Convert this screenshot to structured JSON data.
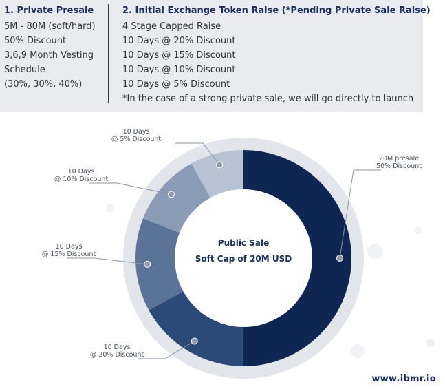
{
  "presale": {
    "title": "1. Private Presale",
    "lines": [
      "5M - 80M (soft/hard)",
      "50% Discount",
      "3,6,9 Month Vesting",
      "Schedule",
      "(30%, 30%, 40%)"
    ]
  },
  "ieo": {
    "title": "2. Initial Exchange Token Raise (*Pending Private Sale Raise)",
    "lines": [
      "4 Stage Capped Raise",
      "10 Days @ 20% Discount",
      "10 Days @ 15% Discount",
      "10 Days @ 10% Discount",
      "10 Days @ 5% Discount",
      "*In the case of a strong private sale, we will go directly to launch"
    ]
  },
  "chart_data": {
    "type": "pie",
    "style": "donut",
    "center_label": [
      "Public Sale",
      "Soft Cap of 20M USD"
    ],
    "slices": [
      {
        "label": [
          "20M presale",
          "50% Discount"
        ],
        "value": 50,
        "color": "#0e2651"
      },
      {
        "label": [
          "10 Days",
          "@ 20% Discount"
        ],
        "value": 17,
        "color": "#2c4a78"
      },
      {
        "label": [
          "10 Days",
          "@ 15% Discount"
        ],
        "value": 14,
        "color": "#5a7396"
      },
      {
        "label": [
          "10 Days",
          "@ 10% Discount"
        ],
        "value": 11,
        "color": "#8a9cb6"
      },
      {
        "label": [
          "10 Days",
          "@ 5% Discount"
        ],
        "value": 8,
        "color": "#b7c2d2"
      }
    ]
  },
  "footer": {
    "website": "www.ibmr.io"
  }
}
